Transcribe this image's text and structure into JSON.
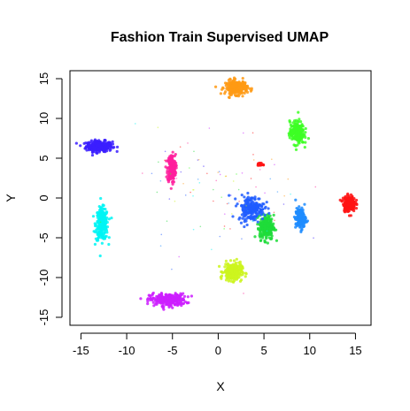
{
  "chart_data": {
    "type": "scatter",
    "title": "Fashion Train Supervised UMAP",
    "xlabel": "X",
    "ylabel": "Y",
    "xlim": [
      -16.2,
      16.7
    ],
    "ylim": [
      -16.0,
      16.0
    ],
    "x_ticks": [
      -15,
      -10,
      -5,
      0,
      5,
      10,
      15
    ],
    "y_ticks": [
      -15,
      -10,
      -5,
      0,
      5,
      10,
      15
    ],
    "grid": false,
    "clusters": [
      {
        "name": "blue-violet cluster",
        "color": "#3b1fff",
        "cx": -13.0,
        "cy": 6.5,
        "sx": 1.3,
        "sy": 0.6,
        "n": 300
      },
      {
        "name": "cyan cluster",
        "color": "#00f5f5",
        "cx": -12.7,
        "cy": -3.3,
        "sx": 0.6,
        "sy": 1.8,
        "n": 260
      },
      {
        "name": "magenta cluster",
        "color": "#ff1f9c",
        "cx": -5.1,
        "cy": 3.7,
        "sx": 0.4,
        "sy": 1.6,
        "n": 220
      },
      {
        "name": "violet cluster",
        "color": "#cc1fff",
        "cx": -5.5,
        "cy": -12.8,
        "sx": 1.8,
        "sy": 0.7,
        "n": 260
      },
      {
        "name": "orange cluster",
        "color": "#ff9a14",
        "cx": 2.0,
        "cy": 13.9,
        "sx": 1.1,
        "sy": 0.8,
        "n": 240
      },
      {
        "name": "yellow-green cluster",
        "color": "#cdf51f",
        "cx": 1.6,
        "cy": -9.3,
        "sx": 0.9,
        "sy": 1.0,
        "n": 260
      },
      {
        "name": "green cluster",
        "color": "#1fdc3a",
        "cx": 5.3,
        "cy": -3.7,
        "sx": 0.7,
        "sy": 1.4,
        "n": 260
      },
      {
        "name": "blue cluster",
        "color": "#1f5cff",
        "cx": 3.6,
        "cy": -1.3,
        "sx": 1.3,
        "sy": 1.4,
        "n": 200
      },
      {
        "name": "azure cluster",
        "color": "#1f8cff",
        "cx": 9.0,
        "cy": -2.6,
        "sx": 0.5,
        "sy": 1.2,
        "n": 170
      },
      {
        "name": "light-green cluster",
        "color": "#3dff24",
        "cx": 8.6,
        "cy": 8.2,
        "sx": 0.7,
        "sy": 1.3,
        "n": 240
      },
      {
        "name": "red cluster",
        "color": "#ff1414",
        "cx": 14.3,
        "cy": -0.7,
        "sx": 0.6,
        "sy": 0.9,
        "n": 220
      },
      {
        "name": "small red cluster",
        "color": "#ff1414",
        "cx": 4.6,
        "cy": 4.2,
        "sx": 0.25,
        "sy": 0.2,
        "n": 25
      }
    ],
    "scatter_noise": {
      "cx": 0.0,
      "cy": 0.5,
      "sx": 4.5,
      "sy": 4.0,
      "n": 90
    }
  }
}
